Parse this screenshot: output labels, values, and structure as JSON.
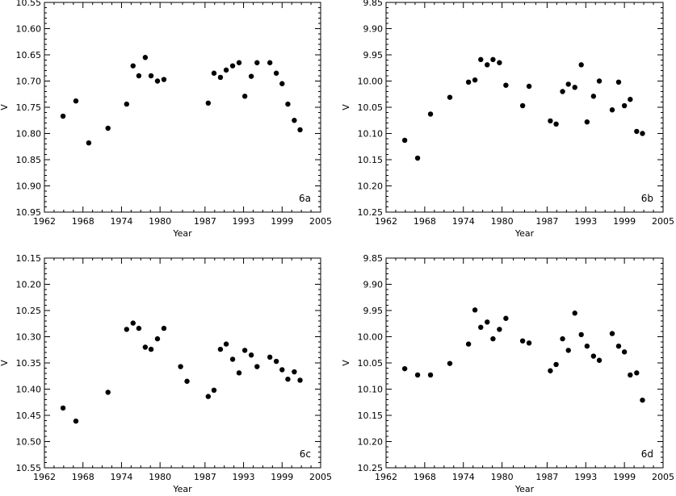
{
  "chart_data": [
    {
      "type": "scatter",
      "panel_label": "6a",
      "xlabel": "Year",
      "ylabel": "V",
      "xlim": [
        1962,
        2005
      ],
      "ylim": [
        10.95,
        10.55
      ],
      "y_inverted": true,
      "xticks": [
        1962,
        1968,
        1974,
        1980,
        1987,
        1993,
        1999,
        2005
      ],
      "yticks": [
        10.55,
        10.6,
        10.65,
        10.7,
        10.75,
        10.8,
        10.85,
        10.9,
        10.95
      ],
      "ytick_labels": [
        "10.55",
        "10.60",
        "10.65",
        "10.70",
        "10.75",
        "10.80",
        "10.85",
        "10.90",
        "10.95"
      ],
      "points": [
        [
          1964.9,
          10.767
        ],
        [
          1966.9,
          10.738
        ],
        [
          1968.9,
          10.818
        ],
        [
          1971.9,
          10.79
        ],
        [
          1974.8,
          10.744
        ],
        [
          1975.8,
          10.671
        ],
        [
          1976.7,
          10.69
        ],
        [
          1977.7,
          10.655
        ],
        [
          1978.6,
          10.69
        ],
        [
          1979.6,
          10.7
        ],
        [
          1980.6,
          10.697
        ],
        [
          1987.5,
          10.742
        ],
        [
          1988.4,
          10.685
        ],
        [
          1989.4,
          10.693
        ],
        [
          1990.3,
          10.679
        ],
        [
          1991.3,
          10.671
        ],
        [
          1992.3,
          10.665
        ],
        [
          1993.2,
          10.729
        ],
        [
          1994.2,
          10.691
        ],
        [
          1995.1,
          10.665
        ],
        [
          1997.1,
          10.665
        ],
        [
          1998.1,
          10.685
        ],
        [
          1999.0,
          10.705
        ],
        [
          1999.9,
          10.744
        ],
        [
          2000.9,
          10.775
        ],
        [
          2001.8,
          10.793
        ]
      ]
    },
    {
      "type": "scatter",
      "panel_label": "6b",
      "xlabel": "Year",
      "ylabel": "V",
      "xlim": [
        1962,
        2005
      ],
      "ylim": [
        10.25,
        9.85
      ],
      "y_inverted": true,
      "xticks": [
        1962,
        1968,
        1974,
        1980,
        1987,
        1993,
        1999,
        2005
      ],
      "yticks": [
        9.85,
        9.9,
        9.95,
        10.0,
        10.05,
        10.1,
        10.15,
        10.2,
        10.25
      ],
      "ytick_labels": [
        "9.85",
        "9.90",
        "9.95",
        "10.00",
        "10.05",
        "10.10",
        "10.15",
        "10.20",
        "10.25"
      ],
      "points": [
        [
          1964.9,
          10.113
        ],
        [
          1966.9,
          10.147
        ],
        [
          1968.9,
          10.063
        ],
        [
          1971.9,
          10.031
        ],
        [
          1974.8,
          10.002
        ],
        [
          1975.8,
          9.998
        ],
        [
          1976.7,
          9.959
        ],
        [
          1977.7,
          9.969
        ],
        [
          1978.6,
          9.959
        ],
        [
          1979.6,
          9.965
        ],
        [
          1980.6,
          10.008
        ],
        [
          1983.2,
          10.047
        ],
        [
          1984.2,
          10.01
        ],
        [
          1987.5,
          10.076
        ],
        [
          1988.4,
          10.082
        ],
        [
          1989.4,
          10.02
        ],
        [
          1990.3,
          10.006
        ],
        [
          1991.3,
          10.012
        ],
        [
          1992.3,
          9.969
        ],
        [
          1993.2,
          10.078
        ],
        [
          1994.2,
          10.029
        ],
        [
          1995.1,
          10.0
        ],
        [
          1997.1,
          10.055
        ],
        [
          1998.1,
          10.002
        ],
        [
          1999.0,
          10.047
        ],
        [
          1999.9,
          10.035
        ],
        [
          2000.9,
          10.096
        ],
        [
          2001.8,
          10.1
        ]
      ]
    },
    {
      "type": "scatter",
      "panel_label": "6c",
      "xlabel": "Year",
      "ylabel": "V",
      "xlim": [
        1962,
        2005
      ],
      "ylim": [
        10.55,
        10.15
      ],
      "y_inverted": true,
      "xticks": [
        1962,
        1968,
        1974,
        1980,
        1987,
        1993,
        1999,
        2005
      ],
      "yticks": [
        10.15,
        10.2,
        10.25,
        10.3,
        10.35,
        10.4,
        10.45,
        10.5,
        10.55
      ],
      "ytick_labels": [
        "10.15",
        "10.20",
        "10.25",
        "10.30",
        "10.35",
        "10.40",
        "10.45",
        "10.50",
        "10.55"
      ],
      "points": [
        [
          1964.9,
          10.436
        ],
        [
          1966.9,
          10.461
        ],
        [
          1971.9,
          10.406
        ],
        [
          1974.8,
          10.286
        ],
        [
          1975.8,
          10.274
        ],
        [
          1976.7,
          10.284
        ],
        [
          1977.7,
          10.32
        ],
        [
          1978.6,
          10.324
        ],
        [
          1979.6,
          10.304
        ],
        [
          1980.6,
          10.284
        ],
        [
          1983.2,
          10.357
        ],
        [
          1984.2,
          10.385
        ],
        [
          1987.5,
          10.414
        ],
        [
          1988.4,
          10.402
        ],
        [
          1989.4,
          10.324
        ],
        [
          1990.3,
          10.314
        ],
        [
          1991.3,
          10.343
        ],
        [
          1992.3,
          10.369
        ],
        [
          1993.2,
          10.326
        ],
        [
          1994.2,
          10.335
        ],
        [
          1995.1,
          10.357
        ],
        [
          1997.1,
          10.339
        ],
        [
          1998.1,
          10.347
        ],
        [
          1999.0,
          10.363
        ],
        [
          1999.9,
          10.381
        ],
        [
          2000.9,
          10.367
        ],
        [
          2001.8,
          10.383
        ]
      ]
    },
    {
      "type": "scatter",
      "panel_label": "6d",
      "xlabel": "Year",
      "ylabel": "V",
      "xlim": [
        1962,
        2005
      ],
      "ylim": [
        10.25,
        9.85
      ],
      "y_inverted": true,
      "xticks": [
        1962,
        1968,
        1974,
        1980,
        1987,
        1993,
        1999,
        2005
      ],
      "yticks": [
        9.85,
        9.9,
        9.95,
        10.0,
        10.05,
        10.1,
        10.15,
        10.2,
        10.25
      ],
      "ytick_labels": [
        "9.85",
        "9.90",
        "9.95",
        "10.00",
        "10.05",
        "10.10",
        "10.15",
        "10.20",
        "10.25"
      ],
      "points": [
        [
          1964.9,
          10.061
        ],
        [
          1966.9,
          10.073
        ],
        [
          1968.9,
          10.073
        ],
        [
          1971.9,
          10.051
        ],
        [
          1974.8,
          10.014
        ],
        [
          1975.8,
          9.949
        ],
        [
          1976.7,
          9.982
        ],
        [
          1977.7,
          9.972
        ],
        [
          1978.6,
          10.004
        ],
        [
          1979.6,
          9.986
        ],
        [
          1980.6,
          9.965
        ],
        [
          1983.2,
          10.008
        ],
        [
          1984.2,
          10.012
        ],
        [
          1987.5,
          10.065
        ],
        [
          1988.4,
          10.053
        ],
        [
          1989.4,
          10.004
        ],
        [
          1990.3,
          10.026
        ],
        [
          1991.3,
          9.955
        ],
        [
          1992.3,
          9.996
        ],
        [
          1993.2,
          10.018
        ],
        [
          1994.2,
          10.037
        ],
        [
          1995.1,
          10.045
        ],
        [
          1997.1,
          9.994
        ],
        [
          1998.1,
          10.018
        ],
        [
          1999.0,
          10.029
        ],
        [
          1999.9,
          10.073
        ],
        [
          2000.9,
          10.069
        ],
        [
          2001.8,
          10.121
        ]
      ]
    }
  ]
}
